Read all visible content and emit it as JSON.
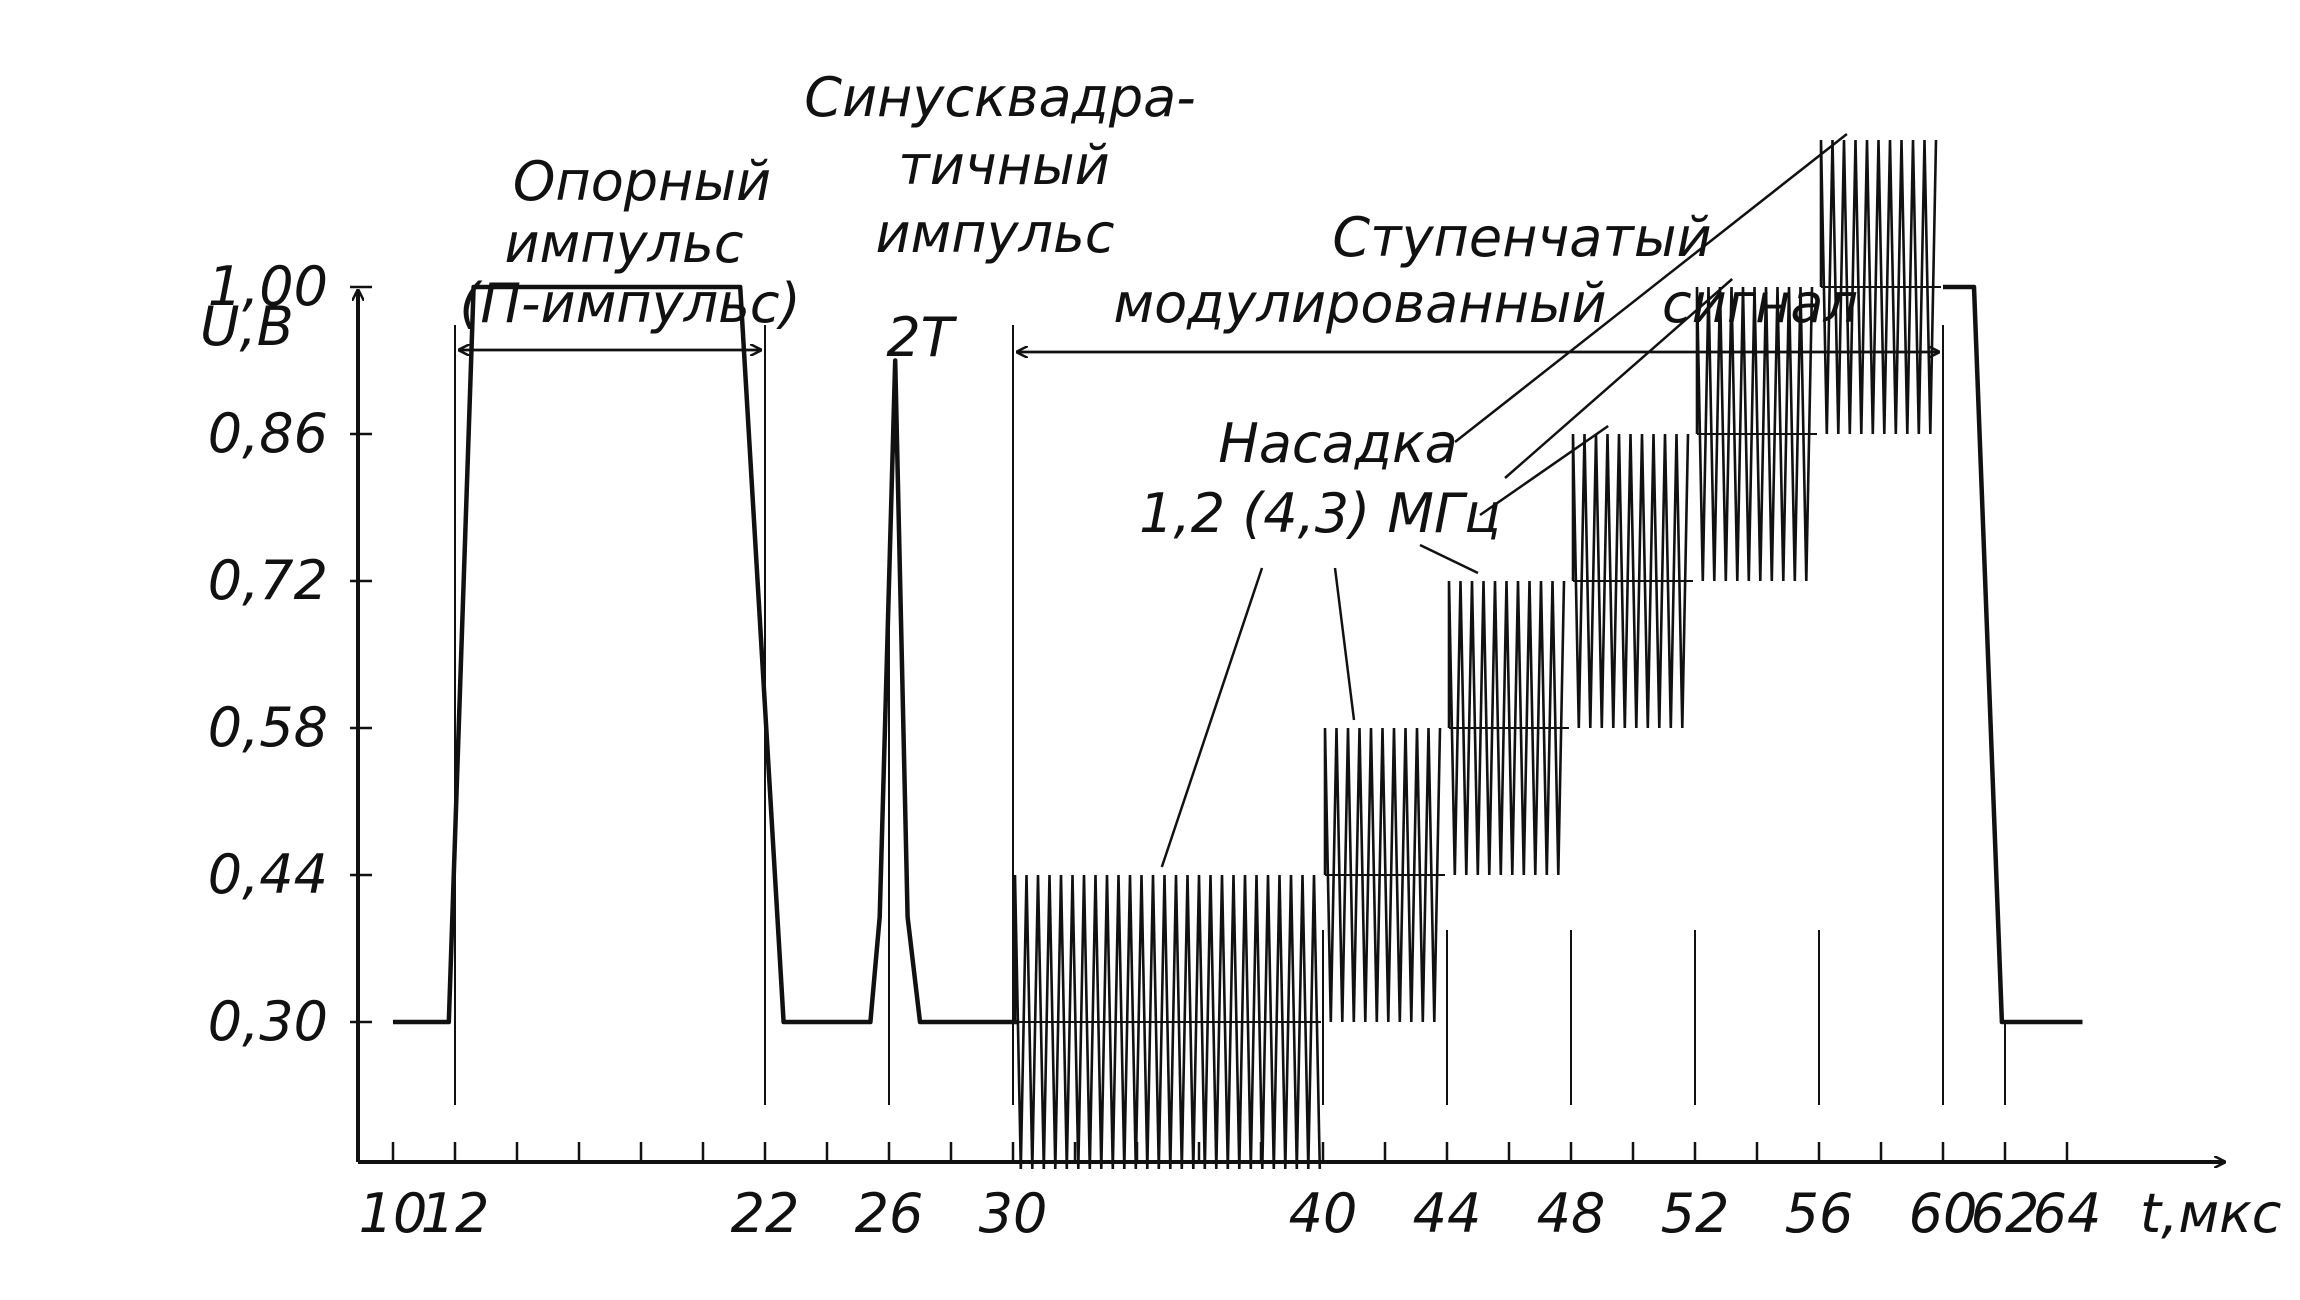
{
  "chart_data": {
    "type": "line",
    "title": "",
    "xlabel": "t,мкс",
    "ylabel": "U,В",
    "x_ticks": [
      10,
      12,
      22,
      26,
      30,
      40,
      44,
      48,
      52,
      56,
      60,
      62,
      64
    ],
    "x_tick_labels": [
      "10",
      "12",
      "22",
      "26",
      "30",
      "40",
      "44",
      "48",
      "52",
      "56",
      "60",
      "62",
      "64"
    ],
    "y_ticks": [
      0.3,
      0.44,
      0.58,
      0.72,
      0.86,
      1.0
    ],
    "y_tick_labels": [
      "0,30",
      "0,44",
      "0,58",
      "0,72",
      "0,86",
      "1,00"
    ],
    "xlim": [
      9.8,
      66.3
    ],
    "ylim": [
      0.15,
      1.2
    ],
    "grid": false,
    "series": [
      {
        "name": "",
        "color": "#111111",
        "x": [
          10,
          11.8,
          12.6,
          21.2,
          22.6,
          24,
          25.4,
          25.7,
          26.2,
          26.6,
          27.0,
          27.4,
          28,
          30,
          30.2
        ],
        "y": [
          0.3,
          0.3,
          1.0,
          1.0,
          0.3,
          0.3,
          0.3,
          0.4,
          0.93,
          0.4,
          0.3,
          0.3,
          0.3,
          0.3,
          0.3
        ]
      },
      {
        "name": "",
        "color": "#111111",
        "x": [
          60,
          61,
          61.9,
          63.8,
          64.5
        ],
        "y": [
          1.0,
          1.0,
          0.3,
          0.3,
          0.3
        ]
      }
    ],
    "staircase_steps": [
      {
        "x_start": 30,
        "x_end": 40,
        "level": 0.3,
        "amp_top": 0.44,
        "amp_bottom": 0.16
      },
      {
        "x_start": 40,
        "x_end": 44,
        "level": 0.44,
        "amp_top": 0.58,
        "amp_bottom": 0.3
      },
      {
        "x_start": 44,
        "x_end": 48,
        "level": 0.58,
        "amp_top": 0.72,
        "amp_bottom": 0.44
      },
      {
        "x_start": 48,
        "x_end": 52,
        "level": 0.72,
        "amp_top": 0.86,
        "amp_bottom": 0.58
      },
      {
        "x_start": 52,
        "x_end": 56,
        "level": 0.86,
        "amp_top": 1.0,
        "amp_bottom": 0.72
      },
      {
        "x_start": 56,
        "x_end": 60,
        "level": 1.0,
        "amp_top": 1.14,
        "amp_bottom": 0.86
      }
    ],
    "annotations": {
      "ref_pulse": [
        "Опорный",
        "импульс",
        "(П-импульс)"
      ],
      "sin2_pulse": [
        "Синусквадра-",
        "тичный",
        "импульс",
        "2Т"
      ],
      "staircase": [
        "Ступенчатый",
        "модулированный",
        "сигнал"
      ],
      "subcarrier": [
        "Насадка",
        "1,2 (4,3) МГц"
      ]
    }
  }
}
